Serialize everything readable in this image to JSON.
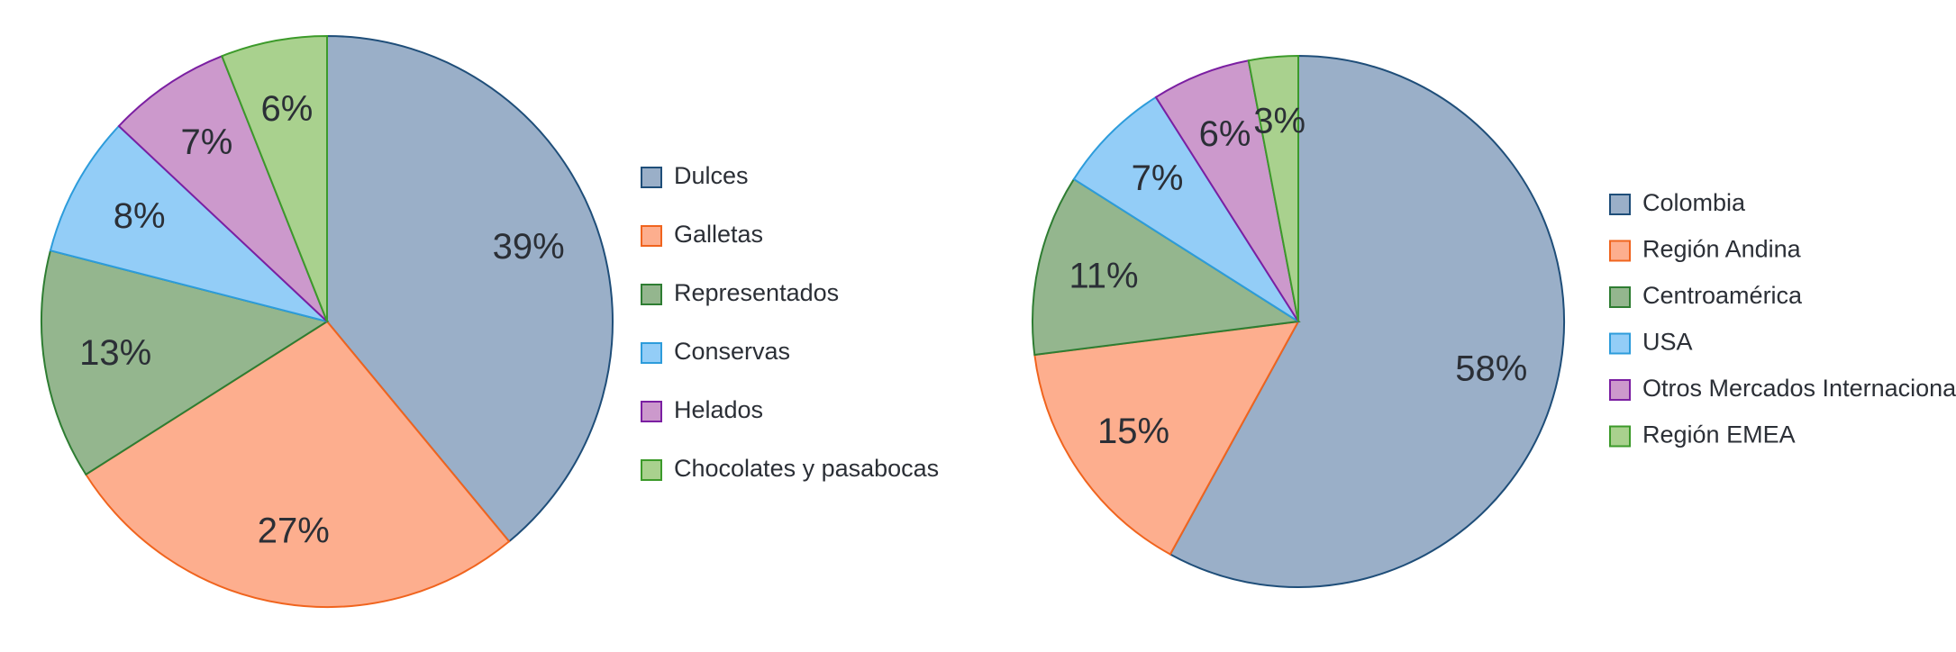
{
  "chart_data": [
    {
      "type": "pie",
      "categories": [
        "Dulces",
        "Galletas",
        "Representados",
        "Conservas",
        "Helados",
        "Chocolates y pasabocas"
      ],
      "values": [
        39,
        27,
        13,
        8,
        7,
        6
      ],
      "value_labels": [
        "39%",
        "27%",
        "13%",
        "8%",
        "7%",
        "6%"
      ],
      "colors": [
        "#9aafc8",
        "#fdae8e",
        "#94b68e",
        "#93cdf7",
        "#cc99cc",
        "#a9d18e"
      ],
      "edgecolors": [
        "#1f4e79",
        "#f0641e",
        "#2e7d32",
        "#2d9cdb",
        "#7b1fa2",
        "#3c9a2a"
      ],
      "legend": "right"
    },
    {
      "type": "pie",
      "categories": [
        "Colombia",
        "Región Andina",
        "Centroamérica",
        "USA",
        "Otros Mercados Internacionales",
        "Región EMEA"
      ],
      "values": [
        58,
        15,
        11,
        7,
        6,
        3
      ],
      "value_labels": [
        "58%",
        "15%",
        "11%",
        "7%",
        "6%",
        "3%"
      ],
      "colors": [
        "#9aafc8",
        "#fdae8e",
        "#94b68e",
        "#93cdf7",
        "#cc99cc",
        "#a9d18e"
      ],
      "edgecolors": [
        "#1f4e79",
        "#f0641e",
        "#2e7d32",
        "#2d9cdb",
        "#7b1fa2",
        "#3c9a2a"
      ],
      "legend": "right"
    }
  ]
}
